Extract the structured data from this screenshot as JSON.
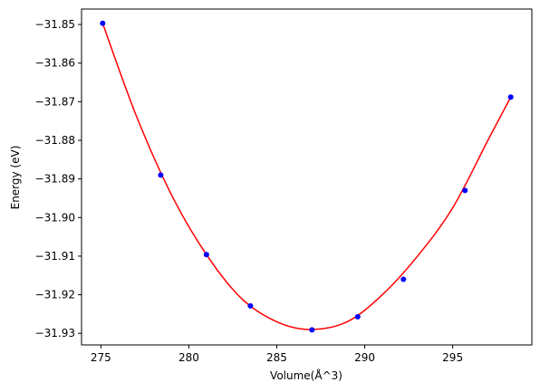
{
  "chart_data": {
    "type": "scatter",
    "title": "",
    "xlabel": "Volume(Å^3)",
    "ylabel": "Energy (eV)",
    "xlim": [
      273.9,
      299.5
    ],
    "ylim": [
      -31.933,
      -31.846
    ],
    "xticks": [
      275,
      280,
      285,
      290,
      295
    ],
    "yticks": [
      -31.85,
      -31.86,
      -31.87,
      -31.88,
      -31.89,
      -31.9,
      -31.91,
      -31.92,
      -31.93
    ],
    "xtick_labels": [
      "275",
      "280",
      "285",
      "290",
      "295"
    ],
    "ytick_labels": [
      "−31.85",
      "−31.86",
      "−31.87",
      "−31.88",
      "−31.89",
      "−31.90",
      "−31.91",
      "−31.92",
      "−31.93"
    ],
    "grid": false,
    "legend": "none",
    "series": [
      {
        "kind": "points",
        "color": "#0000ff",
        "x": [
          275.1,
          278.4,
          281.0,
          283.5,
          287.0,
          289.6,
          292.2,
          295.7,
          298.3
        ],
        "y": [
          -31.8497,
          -31.889,
          -31.9096,
          -31.9229,
          -31.9291,
          -31.9257,
          -31.916,
          -31.893,
          -31.8688
        ]
      },
      {
        "kind": "fit-curve",
        "color": "#ff0000",
        "x": [
          275.1,
          277.0,
          279.0,
          281.0,
          283.0,
          285.0,
          286.9,
          289.0,
          291.0,
          293.0,
          295.0,
          297.0,
          298.3
        ],
        "y": [
          -31.8497,
          -31.8735,
          -31.894,
          -31.9096,
          -31.921,
          -31.927,
          -31.929,
          -31.927,
          -31.92,
          -31.91,
          -31.8975,
          -31.88,
          -31.8688
        ]
      }
    ]
  }
}
